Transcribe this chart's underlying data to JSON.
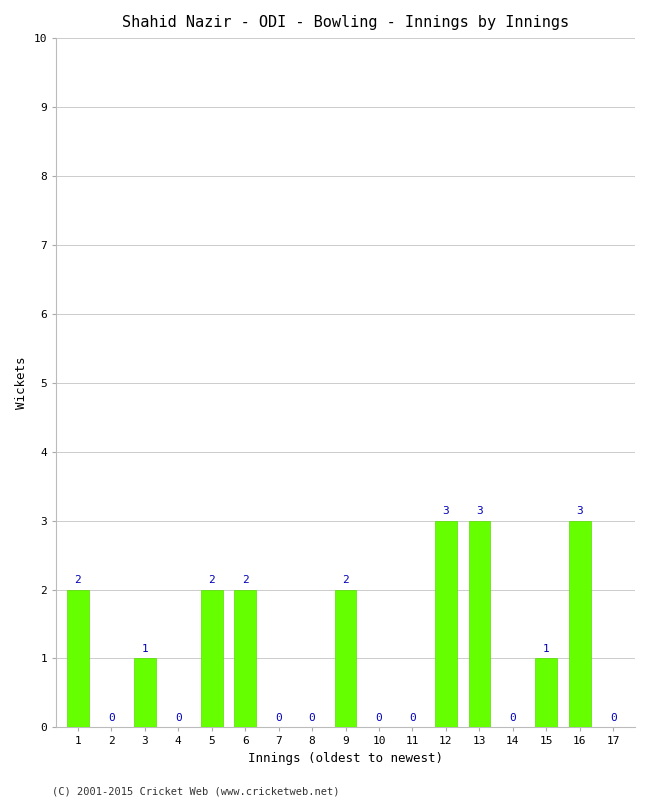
{
  "title": "Shahid Nazir - ODI - Bowling - Innings by Innings",
  "xlabel": "Innings (oldest to newest)",
  "ylabel": "Wickets",
  "categories": [
    "1",
    "2",
    "3",
    "4",
    "5",
    "6",
    "7",
    "8",
    "9",
    "10",
    "11",
    "12",
    "13",
    "14",
    "15",
    "16",
    "17"
  ],
  "values": [
    2,
    0,
    1,
    0,
    2,
    2,
    0,
    0,
    2,
    0,
    0,
    3,
    3,
    0,
    1,
    3,
    0
  ],
  "bar_color": "#66ff00",
  "bar_edge_color": "#55dd00",
  "label_color": "#0000bb",
  "ylim": [
    0,
    10
  ],
  "yticks": [
    0,
    1,
    2,
    3,
    4,
    5,
    6,
    7,
    8,
    9,
    10
  ],
  "background_color": "#ffffff",
  "grid_color": "#cccccc",
  "title_fontsize": 11,
  "axis_label_fontsize": 9,
  "value_label_fontsize": 8,
  "tick_fontsize": 8,
  "footer": "(C) 2001-2015 Cricket Web (www.cricketweb.net)",
  "footer_fontsize": 7.5
}
